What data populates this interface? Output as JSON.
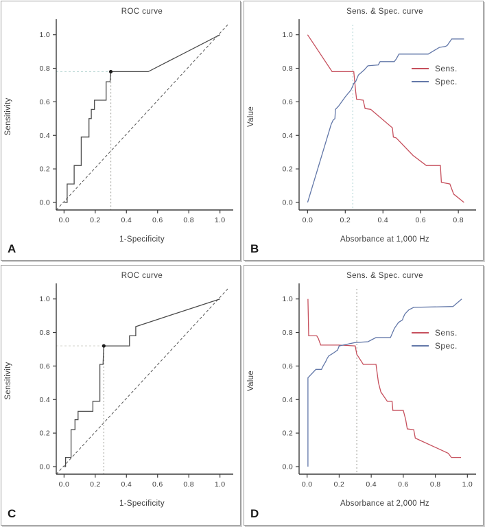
{
  "figure_title": "ROC and sensitivity/specificity curves, four panels",
  "colors": {
    "sens_line": "#c64f5c",
    "spec_line": "#6277a8",
    "roc_line": "#4a4a4a",
    "diagonal": "#555555",
    "axis": "#3b3b3b",
    "marker": "#1c1c1c",
    "teal_ref": "#b7d8d8",
    "gray_ref": "#aaaaa4",
    "light_ref": "#d6d6cf"
  },
  "chart_data": [
    {
      "panel_label": "A",
      "type": "line",
      "title": "ROC curve",
      "xlabel": "1-Specificity",
      "ylabel": "Sensitivity",
      "xlim": [
        -0.05,
        1.05
      ],
      "ylim": [
        -0.045,
        1.06
      ],
      "xticks": [
        0.0,
        0.2,
        0.4,
        0.6,
        0.8,
        1.0
      ],
      "yticks": [
        0.0,
        0.2,
        0.4,
        0.6,
        0.8,
        1.0
      ],
      "xtick_labels": [
        "0.0",
        "0.2",
        "0.4",
        "0.6",
        "0.8",
        "1.0"
      ],
      "ytick_labels": [
        "0.0",
        "0.2",
        "0.4",
        "0.6",
        "0.8",
        "1.0"
      ],
      "grid": false,
      "diagonal_reference": true,
      "marker": {
        "x": 0.3,
        "y": 0.78
      },
      "ref_h": {
        "y": 0.78,
        "color": "#bcd8d6"
      },
      "ref_v": {
        "x": 0.3,
        "color": "#aaaaa4"
      },
      "series": [
        {
          "name": "ROC",
          "color": "#4a4a4a",
          "points": [
            [
              0,
              0
            ],
            [
              0.02,
              0
            ],
            [
              0.02,
              0.11
            ],
            [
              0.065,
              0.11
            ],
            [
              0.065,
              0.22
            ],
            [
              0.11,
              0.22
            ],
            [
              0.11,
              0.39
            ],
            [
              0.16,
              0.39
            ],
            [
              0.16,
              0.5
            ],
            [
              0.175,
              0.5
            ],
            [
              0.175,
              0.555
            ],
            [
              0.195,
              0.555
            ],
            [
              0.195,
              0.61
            ],
            [
              0.27,
              0.61
            ],
            [
              0.27,
              0.72
            ],
            [
              0.295,
              0.72
            ],
            [
              0.3,
              0.78
            ],
            [
              0.54,
              0.78
            ],
            [
              1,
              1
            ]
          ]
        }
      ]
    },
    {
      "panel_label": "B",
      "type": "line",
      "title": "Sens. & Spec. curve",
      "xlabel": "Absorbance at 1,000 Hz",
      "ylabel": "Value",
      "xlim": [
        -0.045,
        0.865
      ],
      "ylim": [
        -0.045,
        1.06
      ],
      "xticks": [
        0.0,
        0.2,
        0.4,
        0.6,
        0.8
      ],
      "yticks": [
        0.0,
        0.2,
        0.4,
        0.6,
        0.8,
        1.0
      ],
      "xtick_labels": [
        "0.0",
        "0.2",
        "0.4",
        "0.6",
        "0.8"
      ],
      "ytick_labels": [
        "0.0",
        "0.2",
        "0.4",
        "0.6",
        "0.8",
        "1.0"
      ],
      "grid": false,
      "diagonal_reference": false,
      "legend": true,
      "legend_position": "right",
      "vline": {
        "x": 0.24,
        "color": "#b7d8d8"
      },
      "series": [
        {
          "name": "Sens.",
          "color": "#c64f5c",
          "points": [
            [
              0,
              1
            ],
            [
              0.13,
              0.78
            ],
            [
              0.245,
              0.78
            ],
            [
              0.255,
              0.665
            ],
            [
              0.26,
              0.615
            ],
            [
              0.295,
              0.61
            ],
            [
              0.305,
              0.56
            ],
            [
              0.335,
              0.555
            ],
            [
              0.45,
              0.445
            ],
            [
              0.455,
              0.39
            ],
            [
              0.47,
              0.385
            ],
            [
              0.56,
              0.28
            ],
            [
              0.63,
              0.22
            ],
            [
              0.705,
              0.22
            ],
            [
              0.71,
              0.12
            ],
            [
              0.755,
              0.11
            ],
            [
              0.775,
              0.05
            ],
            [
              0.83,
              0
            ]
          ]
        },
        {
          "name": "Spec.",
          "color": "#6277a8",
          "points": [
            [
              0,
              0
            ],
            [
              0.125,
              0.465
            ],
            [
              0.135,
              0.49
            ],
            [
              0.145,
              0.5
            ],
            [
              0.148,
              0.555
            ],
            [
              0.165,
              0.575
            ],
            [
              0.2,
              0.63
            ],
            [
              0.23,
              0.67
            ],
            [
              0.24,
              0.695
            ],
            [
              0.245,
              0.71
            ],
            [
              0.255,
              0.72
            ],
            [
              0.27,
              0.76
            ],
            [
              0.285,
              0.775
            ],
            [
              0.3,
              0.79
            ],
            [
              0.32,
              0.815
            ],
            [
              0.375,
              0.82
            ],
            [
              0.385,
              0.84
            ],
            [
              0.46,
              0.84
            ],
            [
              0.47,
              0.855
            ],
            [
              0.485,
              0.885
            ],
            [
              0.64,
              0.885
            ],
            [
              0.7,
              0.925
            ],
            [
              0.73,
              0.93
            ],
            [
              0.74,
              0.935
            ],
            [
              0.765,
              0.975
            ],
            [
              0.83,
              0.975
            ]
          ]
        }
      ]
    },
    {
      "panel_label": "C",
      "type": "line",
      "title": "ROC curve",
      "xlabel": "1-Specificity",
      "ylabel": "Sensitivity",
      "xlim": [
        -0.05,
        1.05
      ],
      "ylim": [
        -0.045,
        1.06
      ],
      "xticks": [
        0.0,
        0.2,
        0.4,
        0.6,
        0.8,
        1.0
      ],
      "yticks": [
        0.0,
        0.2,
        0.4,
        0.6,
        0.8,
        1.0
      ],
      "xtick_labels": [
        "0.0",
        "0.2",
        "0.4",
        "0.6",
        "0.8",
        "1.0"
      ],
      "ytick_labels": [
        "0.0",
        "0.2",
        "0.4",
        "0.6",
        "0.8",
        "1.0"
      ],
      "grid": false,
      "diagonal_reference": true,
      "marker": {
        "x": 0.255,
        "y": 0.72
      },
      "ref_h": {
        "y": 0.72,
        "color": "#d6d6cf"
      },
      "ref_v": {
        "x": 0.255,
        "color": "#aaaaa4"
      },
      "series": [
        {
          "name": "ROC",
          "color": "#4a4a4a",
          "points": [
            [
              0,
              0
            ],
            [
              0.01,
              0
            ],
            [
              0.01,
              0.055
            ],
            [
              0.045,
              0.055
            ],
            [
              0.045,
              0.22
            ],
            [
              0.07,
              0.22
            ],
            [
              0.07,
              0.28
            ],
            [
              0.09,
              0.28
            ],
            [
              0.09,
              0.33
            ],
            [
              0.185,
              0.33
            ],
            [
              0.185,
              0.39
            ],
            [
              0.23,
              0.39
            ],
            [
              0.23,
              0.61
            ],
            [
              0.25,
              0.61
            ],
            [
              0.255,
              0.72
            ],
            [
              0.42,
              0.72
            ],
            [
              0.42,
              0.78
            ],
            [
              0.46,
              0.78
            ],
            [
              0.46,
              0.835
            ],
            [
              1,
              1
            ]
          ]
        }
      ]
    },
    {
      "panel_label": "D",
      "type": "line",
      "title": "Sens. & Spec. curve",
      "xlabel": "Absorbance at 2,000 Hz",
      "ylabel": "Value",
      "xlim": [
        -0.05,
        1.02
      ],
      "ylim": [
        -0.045,
        1.06
      ],
      "xticks": [
        0.0,
        0.2,
        0.4,
        0.6,
        0.8,
        1.0
      ],
      "yticks": [
        0.0,
        0.2,
        0.4,
        0.6,
        0.8,
        1.0
      ],
      "xtick_labels": [
        "0.0",
        "0.2",
        "0.4",
        "0.6",
        "0.8",
        "1.0"
      ],
      "ytick_labels": [
        "0.0",
        "0.2",
        "0.4",
        "0.6",
        "0.8",
        "1.0"
      ],
      "grid": false,
      "diagonal_reference": false,
      "legend": true,
      "legend_position": "right",
      "vline": {
        "x": 0.31,
        "color": "#aaaaa4"
      },
      "series": [
        {
          "name": "Sens.",
          "color": "#c64f5c",
          "points": [
            [
              0.005,
              1
            ],
            [
              0.01,
              0.78
            ],
            [
              0.06,
              0.78
            ],
            [
              0.07,
              0.765
            ],
            [
              0.085,
              0.725
            ],
            [
              0.2,
              0.725
            ],
            [
              0.3,
              0.72
            ],
            [
              0.31,
              0.67
            ],
            [
              0.35,
              0.61
            ],
            [
              0.43,
              0.61
            ],
            [
              0.445,
              0.5
            ],
            [
              0.46,
              0.445
            ],
            [
              0.5,
              0.39
            ],
            [
              0.53,
              0.39
            ],
            [
              0.535,
              0.335
            ],
            [
              0.6,
              0.335
            ],
            [
              0.615,
              0.28
            ],
            [
              0.625,
              0.225
            ],
            [
              0.665,
              0.22
            ],
            [
              0.675,
              0.17
            ],
            [
              0.88,
              0.08
            ],
            [
              0.9,
              0.055
            ],
            [
              0.96,
              0.055
            ]
          ]
        },
        {
          "name": "Spec.",
          "color": "#6277a8",
          "points": [
            [
              0.005,
              0
            ],
            [
              0.005,
              0.53
            ],
            [
              0.02,
              0.545
            ],
            [
              0.04,
              0.565
            ],
            [
              0.055,
              0.58
            ],
            [
              0.09,
              0.58
            ],
            [
              0.1,
              0.6
            ],
            [
              0.115,
              0.625
            ],
            [
              0.125,
              0.645
            ],
            [
              0.135,
              0.66
            ],
            [
              0.16,
              0.675
            ],
            [
              0.19,
              0.695
            ],
            [
              0.2,
              0.72
            ],
            [
              0.25,
              0.73
            ],
            [
              0.3,
              0.74
            ],
            [
              0.38,
              0.745
            ],
            [
              0.4,
              0.755
            ],
            [
              0.43,
              0.77
            ],
            [
              0.52,
              0.77
            ],
            [
              0.545,
              0.825
            ],
            [
              0.57,
              0.86
            ],
            [
              0.595,
              0.875
            ],
            [
              0.6,
              0.89
            ],
            [
              0.61,
              0.91
            ],
            [
              0.62,
              0.92
            ],
            [
              0.635,
              0.935
            ],
            [
              0.665,
              0.95
            ],
            [
              0.91,
              0.955
            ],
            [
              0.965,
              1
            ]
          ]
        }
      ]
    }
  ]
}
